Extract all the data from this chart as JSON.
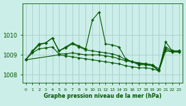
{
  "title": "Graphe pression niveau de la mer (hPa)",
  "background_color": "#cceee8",
  "grid_color": "#aacccc",
  "line_color": "#005500",
  "xlim": [
    -0.5,
    23.5
  ],
  "ylim": [
    1007.6,
    1011.6
  ],
  "yticks": [
    1008,
    1009,
    1010
  ],
  "xticks": [
    0,
    1,
    2,
    3,
    4,
    5,
    6,
    7,
    8,
    9,
    10,
    11,
    12,
    13,
    14,
    15,
    16,
    17,
    18,
    19,
    20,
    21,
    22,
    23
  ],
  "series": [
    {
      "x": [
        0,
        1,
        2,
        3,
        4,
        5,
        6,
        7,
        8,
        9,
        10,
        11,
        12,
        13,
        14,
        15,
        16,
        17,
        18,
        19,
        20,
        21,
        22,
        23
      ],
      "y": [
        1008.75,
        1009.2,
        1009.55,
        1009.6,
        1009.85,
        1009.2,
        1009.4,
        1009.6,
        1009.45,
        1009.3,
        1010.75,
        1011.15,
        1009.55,
        1009.5,
        1009.4,
        1008.8,
        1008.65,
        1008.55,
        1008.55,
        1008.5,
        1008.3,
        1009.4,
        1009.2,
        1009.2
      ]
    },
    {
      "x": [
        0,
        1,
        2,
        3,
        4,
        5,
        6,
        7,
        8,
        9,
        10,
        11,
        12,
        13,
        14,
        15,
        16,
        17,
        18,
        19,
        20,
        21,
        22,
        23
      ],
      "y": [
        1008.75,
        1009.1,
        1009.3,
        1009.35,
        1009.4,
        1009.05,
        1009.05,
        1009.1,
        1009.05,
        1009.0,
        1009.0,
        1009.0,
        1008.95,
        1008.9,
        1008.8,
        1008.7,
        1008.65,
        1008.6,
        1008.55,
        1008.5,
        1008.2,
        1009.3,
        1009.15,
        1009.15
      ]
    },
    {
      "x": [
        1,
        2,
        3,
        4,
        5,
        6,
        7,
        8,
        9,
        10,
        11,
        12,
        13,
        14,
        15,
        16,
        17,
        18,
        19,
        20,
        21,
        22,
        23
      ],
      "y": [
        1009.15,
        1009.5,
        1009.6,
        1009.85,
        1009.2,
        1009.35,
        1009.55,
        1009.4,
        1009.25,
        1009.2,
        1009.15,
        1009.1,
        1009.05,
        1008.95,
        1008.75,
        1008.65,
        1008.5,
        1008.5,
        1008.45,
        1008.2,
        1009.65,
        1009.2,
        1009.2
      ]
    },
    {
      "x": [
        0,
        5,
        6,
        7,
        8,
        9,
        10,
        11,
        12,
        13,
        14,
        15,
        16,
        17,
        18,
        19,
        20,
        21,
        22,
        23
      ],
      "y": [
        1008.75,
        1009.0,
        1008.95,
        1008.9,
        1008.85,
        1008.8,
        1008.75,
        1008.7,
        1008.65,
        1008.6,
        1008.55,
        1008.45,
        1008.4,
        1008.35,
        1008.35,
        1008.3,
        1008.2,
        1009.2,
        1009.15,
        1009.15
      ]
    }
  ]
}
